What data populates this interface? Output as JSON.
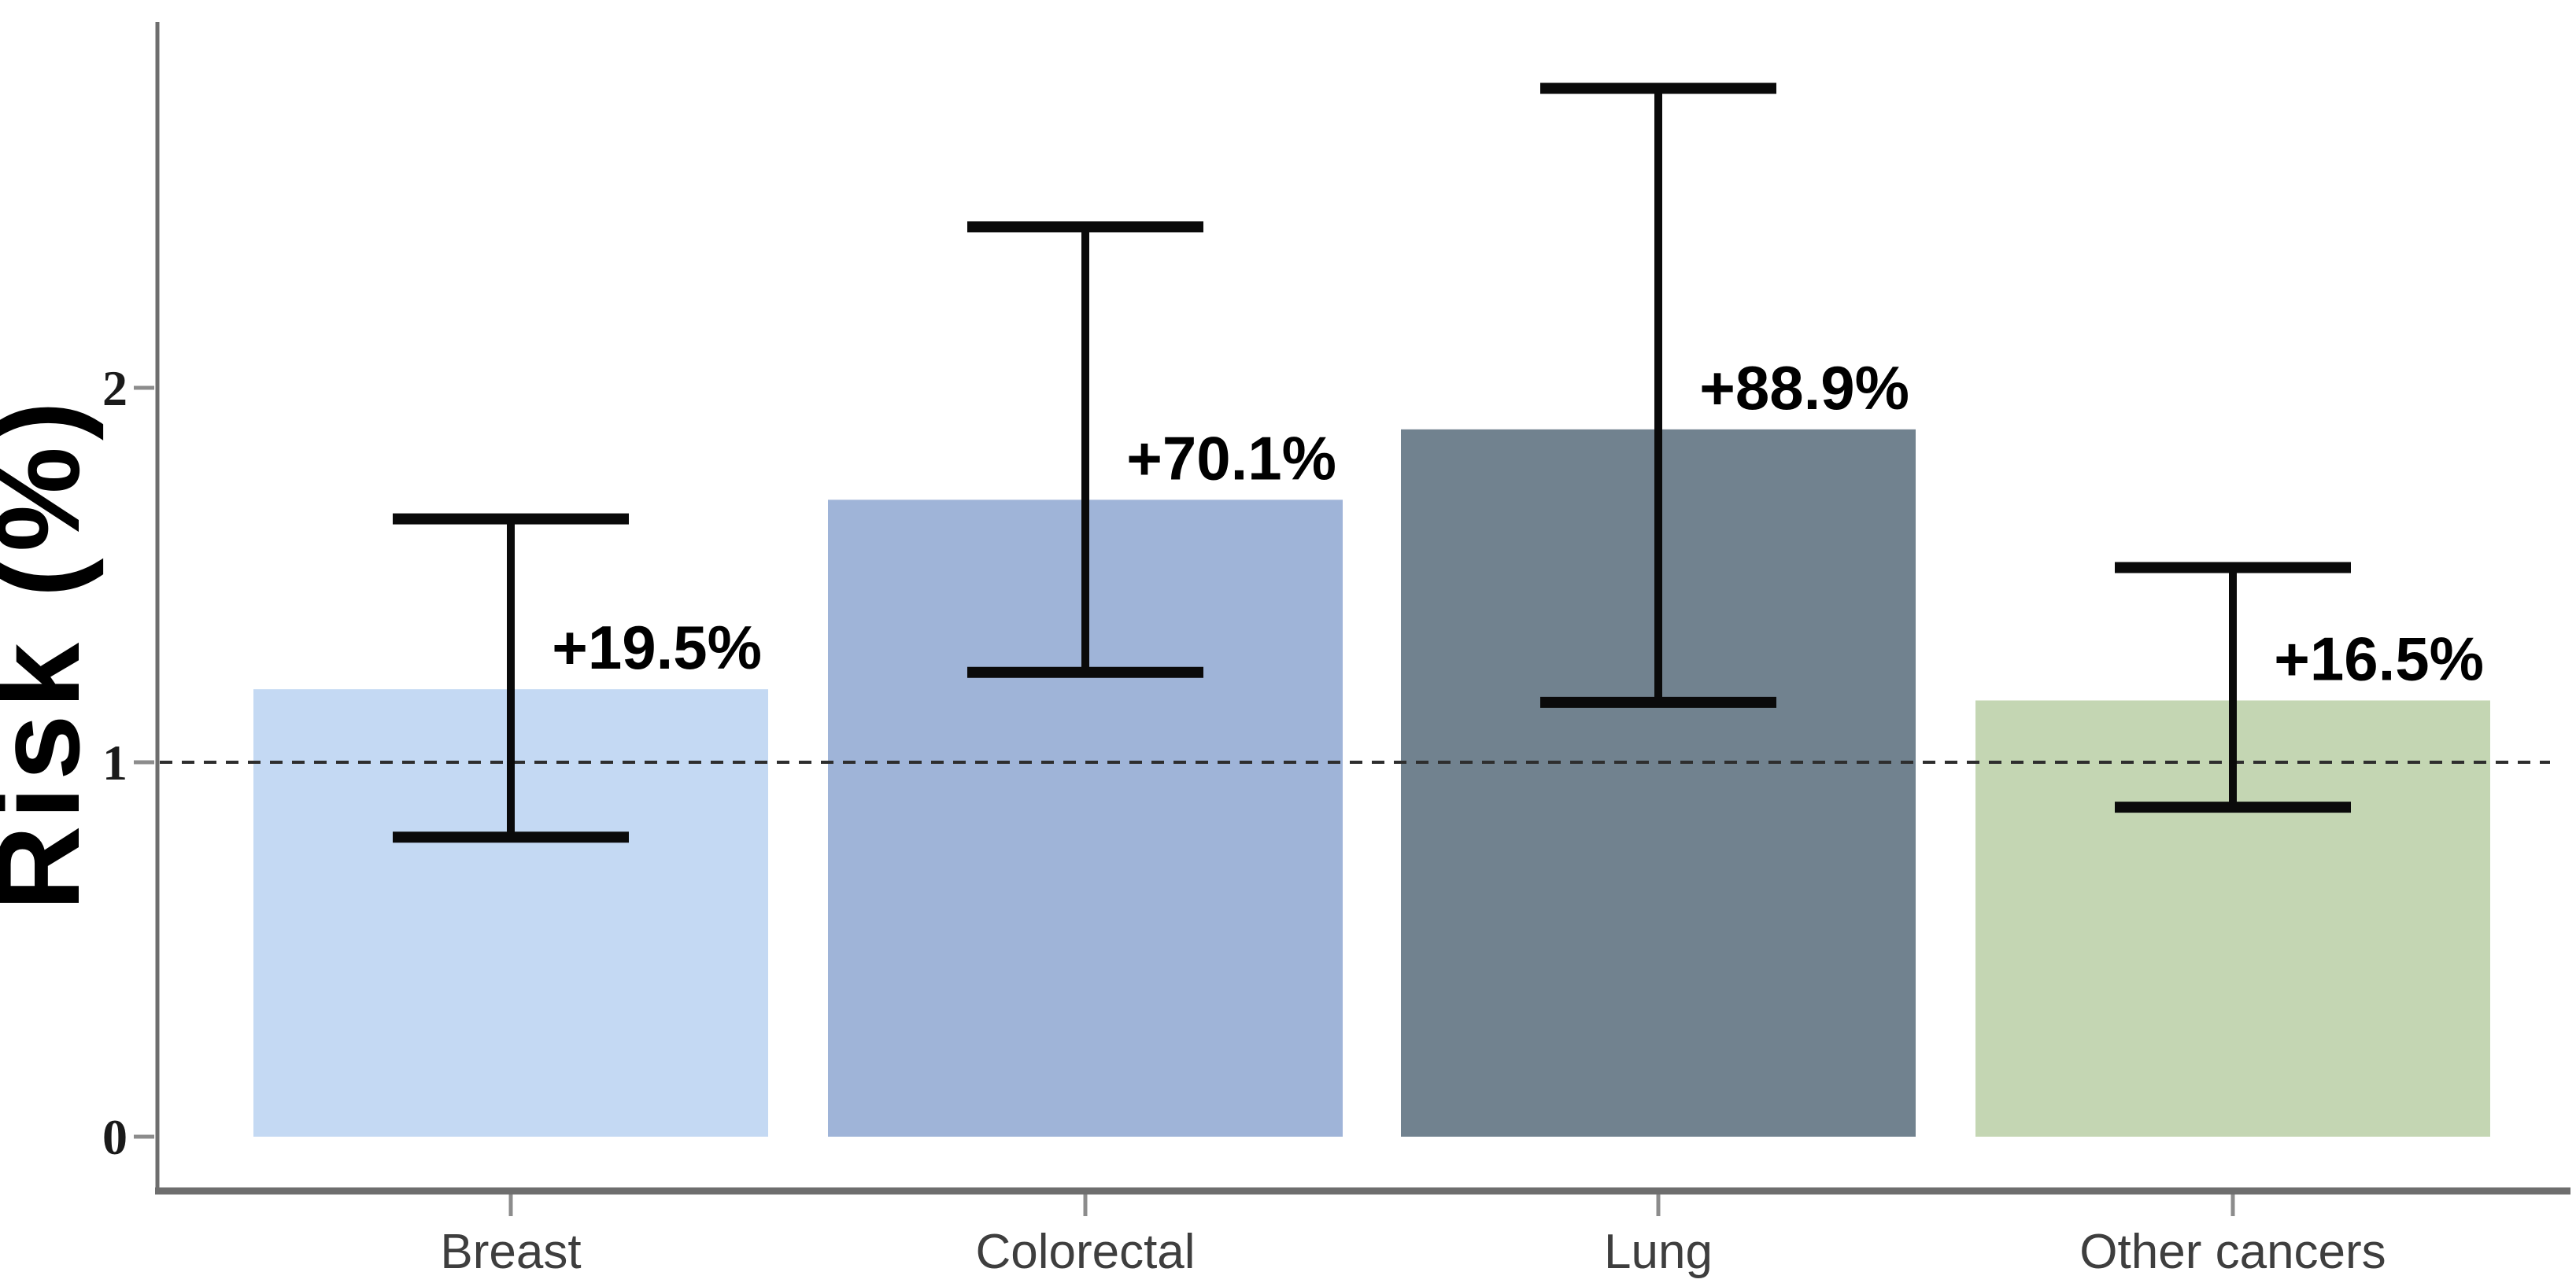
{
  "figure": {
    "kind": "statistical bar chart with error bars",
    "background": "#ffffff"
  },
  "chart_data": {
    "type": "bar",
    "title": "",
    "xlabel": "",
    "ylabel": "Risk (%)",
    "categories": [
      "Breast",
      "Colorectal",
      "Lung",
      "Other cancers"
    ],
    "values": [
      1.195,
      1.701,
      1.889,
      1.165
    ],
    "bar_labels": [
      "+19.5%",
      "+70.1%",
      "+88.9%",
      "+16.5%"
    ],
    "error_low": [
      0.8,
      1.24,
      1.16,
      0.88
    ],
    "error_high": [
      1.65,
      2.43,
      2.8,
      1.52
    ],
    "bar_colors": [
      "#c4d9f3",
      "#9fb4d8",
      "#71828f",
      "#c4d6b3"
    ],
    "yticks": [
      0,
      1,
      2
    ],
    "ylim": [
      0,
      2.97
    ],
    "reference_line": 1,
    "grid": false,
    "legend": "none"
  },
  "style": {
    "axis_color": "#6e6e6e",
    "tick_mark_color": "#8c8c8c",
    "tick_label_color": "#1a1a1a",
    "category_label_color": "#3e3e3e",
    "dashed_line_color": "#2e2e2e",
    "error_bar_color": "#0a0a0a",
    "value_label_color": "#000000",
    "y_title_color": "#000000"
  }
}
